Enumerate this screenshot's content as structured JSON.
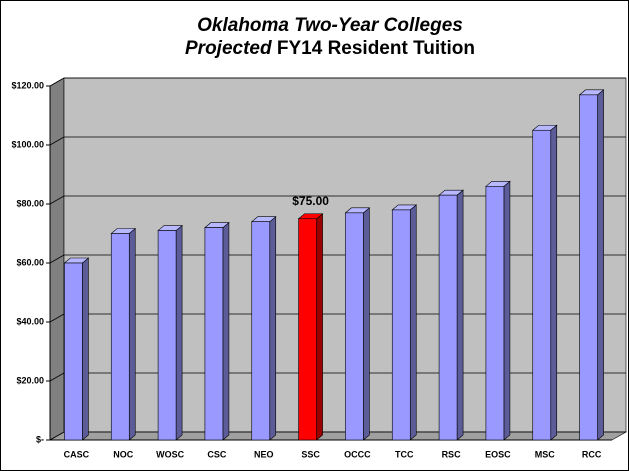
{
  "chart_data": {
    "type": "bar3d",
    "title": "Oklahoma Two-Year Colleges",
    "subtitle": {
      "emphasis": "Projected",
      "rest": "FY14 Resident Tuition"
    },
    "categories": [
      "CASC",
      "NOC",
      "WOSC",
      "CSC",
      "NEO",
      "SSC",
      "OCCC",
      "TCC",
      "RSC",
      "EOSC",
      "MSC",
      "RCC"
    ],
    "values": [
      60,
      70,
      71,
      72,
      74,
      75,
      77,
      78,
      83,
      86,
      105,
      117
    ],
    "value_labels": [
      null,
      null,
      null,
      null,
      null,
      "$75.00",
      null,
      null,
      null,
      null,
      null,
      null
    ],
    "colors": [
      "#9999ff",
      "#9999ff",
      "#9999ff",
      "#9999ff",
      "#9999ff",
      "#ff0000",
      "#9999ff",
      "#9999ff",
      "#9999ff",
      "#9999ff",
      "#9999ff",
      "#9999ff"
    ],
    "ylim": [
      0,
      120
    ],
    "yticks": [
      {
        "value": 0,
        "label": "$-"
      },
      {
        "value": 20,
        "label": "$20.00"
      },
      {
        "value": 40,
        "label": "$40.00"
      },
      {
        "value": 60,
        "label": "$60.00"
      },
      {
        "value": 80,
        "label": "$80.00"
      },
      {
        "value": 100,
        "label": "$100.00"
      },
      {
        "value": 120,
        "label": "$120.00"
      }
    ],
    "grid": true
  }
}
